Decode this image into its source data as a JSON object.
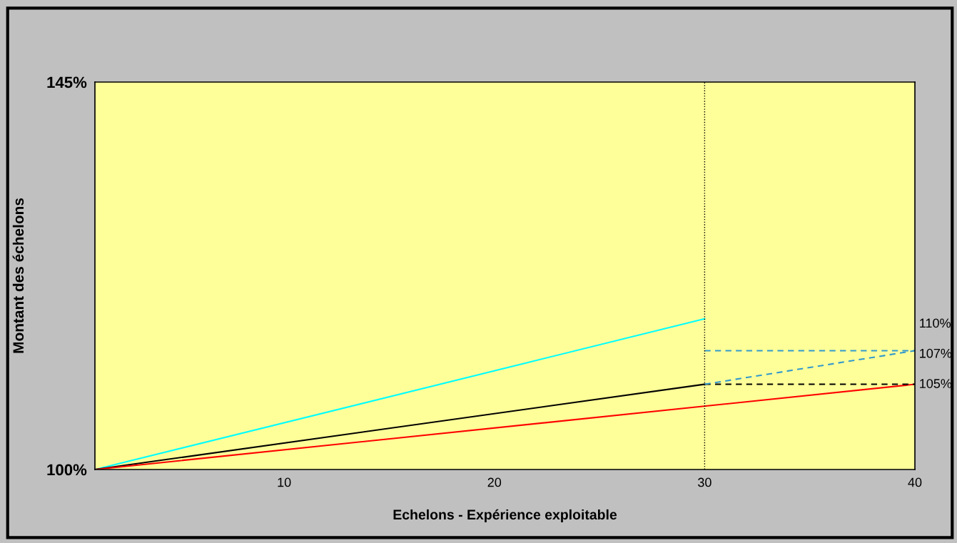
{
  "chart_data": {
    "type": "line",
    "xlabel": "Echelons - Expérience exploitable",
    "ylabel": "Montant des échelons",
    "xlim": [
      1,
      40
    ],
    "xticks": [
      10,
      20,
      30,
      40
    ],
    "ylim": [
      100,
      145
    ],
    "yticks": [
      {
        "value": 100,
        "label": "100%"
      },
      {
        "value": 145,
        "label": "145%"
      }
    ],
    "grid": false,
    "legend": false,
    "marker": "none",
    "series": [
      {
        "color": "#00ffff",
        "x": [
          1,
          30
        ],
        "values": [
          100,
          117.5
        ],
        "line_style": "solid"
      },
      {
        "color": "#000000",
        "x": [
          1,
          30
        ],
        "values": [
          100,
          109.9
        ],
        "line_style": "solid"
      },
      {
        "color": "#ff0000",
        "x": [
          1,
          40
        ],
        "values": [
          100,
          109.9
        ],
        "line_style": "solid"
      },
      {
        "color": "#000000",
        "x": [
          30,
          40
        ],
        "values": [
          109.9,
          109.9
        ],
        "line_style": "dashed"
      },
      {
        "color": "#3399cc",
        "x": [
          30,
          40
        ],
        "values": [
          109.9,
          113.8
        ],
        "line_style": "dashed"
      },
      {
        "color": "#3399cc",
        "x": [
          30,
          40
        ],
        "values": [
          113.8,
          113.8
        ],
        "line_style": "dashed"
      }
    ],
    "ref_lines": [
      {
        "axis": "x",
        "value": 30,
        "color": "#000000",
        "line_style": "dotted"
      }
    ],
    "annotations": [
      "110%",
      "107%",
      "105%"
    ]
  }
}
